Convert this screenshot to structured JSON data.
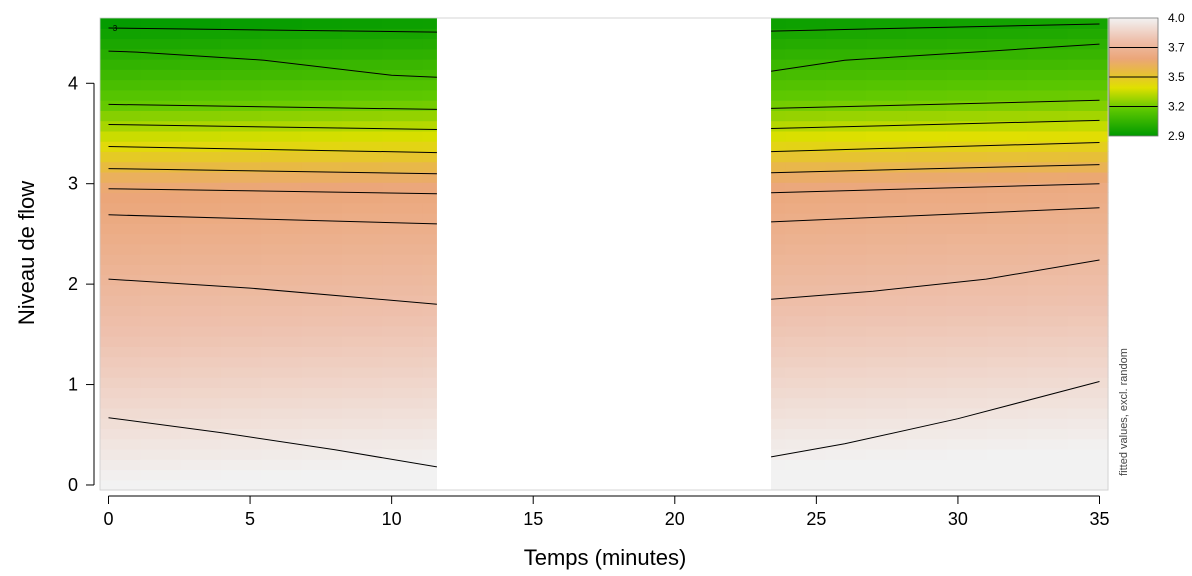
{
  "chart_data": {
    "type": "heatmap",
    "xlabel": "Temps (minutes)",
    "ylabel": "Niveau de flow",
    "side_label": "fitted values, excl. random",
    "xlim": [
      -0.3,
      35.3
    ],
    "ylim": [
      -0.05,
      4.65
    ],
    "x_ticks": [
      "0",
      "5",
      "10",
      "15",
      "20",
      "25",
      "30",
      "35"
    ],
    "y_ticks": [
      "0",
      "1",
      "2",
      "3",
      "4"
    ],
    "excluded_x_range": [
      11.6,
      23.4
    ],
    "color_scale": {
      "range": [
        2.9,
        4.0
      ],
      "ticks": [
        "4.0",
        "3.7",
        "3.5",
        "3.2",
        "2.9"
      ],
      "stops": [
        {
          "value": 2.9,
          "color": "#009a00"
        },
        {
          "value": 3.15,
          "color": "#5ec800"
        },
        {
          "value": 3.35,
          "color": "#e0e000"
        },
        {
          "value": 3.5,
          "color": "#e8bb3f"
        },
        {
          "value": 3.62,
          "color": "#eba679"
        },
        {
          "value": 3.8,
          "color": "#eec1ae"
        },
        {
          "value": 4.0,
          "color": "#f2f2f2"
        }
      ]
    },
    "contour_marker_label": "3",
    "contours": [
      {
        "left": [
          [
            0.0,
            4.55
          ],
          [
            11.6,
            4.51
          ]
        ],
        "right": [
          [
            23.4,
            4.52
          ],
          [
            35.0,
            4.59
          ]
        ]
      },
      {
        "left": [
          [
            0.0,
            4.32
          ],
          [
            1.0,
            4.31
          ],
          [
            5.5,
            4.23
          ],
          [
            10.0,
            4.08
          ],
          [
            11.6,
            4.06
          ]
        ],
        "right": [
          [
            23.4,
            4.12
          ],
          [
            26.0,
            4.23
          ],
          [
            30.0,
            4.3
          ],
          [
            35.0,
            4.39
          ]
        ]
      },
      {
        "left": [
          [
            0.0,
            3.79
          ],
          [
            11.6,
            3.74
          ]
        ],
        "right": [
          [
            23.4,
            3.75
          ],
          [
            35.0,
            3.83
          ]
        ]
      },
      {
        "left": [
          [
            0.0,
            3.59
          ],
          [
            11.6,
            3.54
          ]
        ],
        "right": [
          [
            23.4,
            3.55
          ],
          [
            35.0,
            3.63
          ]
        ]
      },
      {
        "left": [
          [
            0.0,
            3.37
          ],
          [
            11.6,
            3.31
          ]
        ],
        "right": [
          [
            23.4,
            3.32
          ],
          [
            35.0,
            3.41
          ]
        ]
      },
      {
        "left": [
          [
            0.0,
            3.15
          ],
          [
            11.6,
            3.1
          ]
        ],
        "right": [
          [
            23.4,
            3.11
          ],
          [
            35.0,
            3.19
          ]
        ]
      },
      {
        "left": [
          [
            0.0,
            2.95
          ],
          [
            11.6,
            2.9
          ]
        ],
        "right": [
          [
            23.4,
            2.91
          ],
          [
            35.0,
            3.0
          ]
        ]
      },
      {
        "left": [
          [
            0.0,
            2.69
          ],
          [
            11.6,
            2.6
          ]
        ],
        "right": [
          [
            23.4,
            2.62
          ],
          [
            35.0,
            2.76
          ]
        ]
      },
      {
        "left": [
          [
            0.0,
            2.05
          ],
          [
            5.0,
            1.96
          ],
          [
            11.6,
            1.8
          ]
        ],
        "right": [
          [
            23.4,
            1.85
          ],
          [
            27.0,
            1.93
          ],
          [
            31.0,
            2.05
          ],
          [
            35.0,
            2.24
          ]
        ]
      },
      {
        "left": [
          [
            0.0,
            0.67
          ],
          [
            4.0,
            0.52
          ],
          [
            8.0,
            0.35
          ],
          [
            11.6,
            0.18
          ]
        ],
        "right": [
          [
            23.4,
            0.28
          ],
          [
            26.0,
            0.41
          ],
          [
            30.0,
            0.66
          ],
          [
            35.0,
            1.03
          ]
        ]
      }
    ]
  }
}
